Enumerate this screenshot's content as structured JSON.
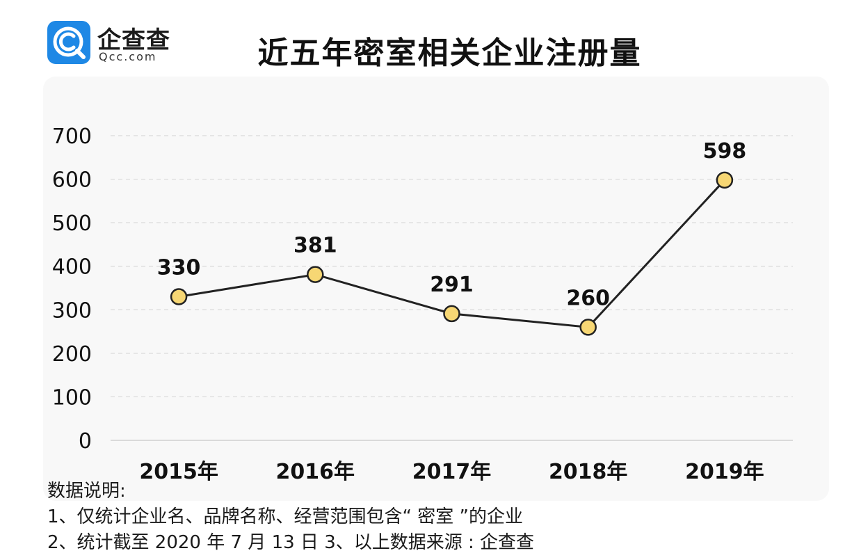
{
  "logo": {
    "name": "企查查",
    "domain": "Qcc.com",
    "color": "#1e88e5"
  },
  "title": "近五年密室相关企业注册量",
  "chart_data": {
    "type": "line",
    "title": "近五年密室相关企业注册量",
    "categories": [
      "2015年",
      "2016年",
      "2017年",
      "2018年",
      "2019年"
    ],
    "series": [
      {
        "values": [
          330,
          381,
          291,
          260,
          598
        ]
      }
    ],
    "data_labels": [
      "330",
      "381",
      "291",
      "260",
      "598"
    ],
    "y_ticks": [
      "0",
      "100",
      "200",
      "300",
      "400",
      "500",
      "600",
      "700"
    ],
    "ylim": [
      0,
      700
    ],
    "grid": true,
    "line_color": "#222222",
    "marker_fill": "#f7d774",
    "marker_stroke": "#222222"
  },
  "notes": {
    "heading": "数据说明:",
    "line1": "1、仅统计企业名、品牌名称、经营范围包含“ 密室 ”的企业",
    "line2": "2、统计截至 2020 年 7 月 13 日    3、以上数据来源 : 企查查"
  }
}
